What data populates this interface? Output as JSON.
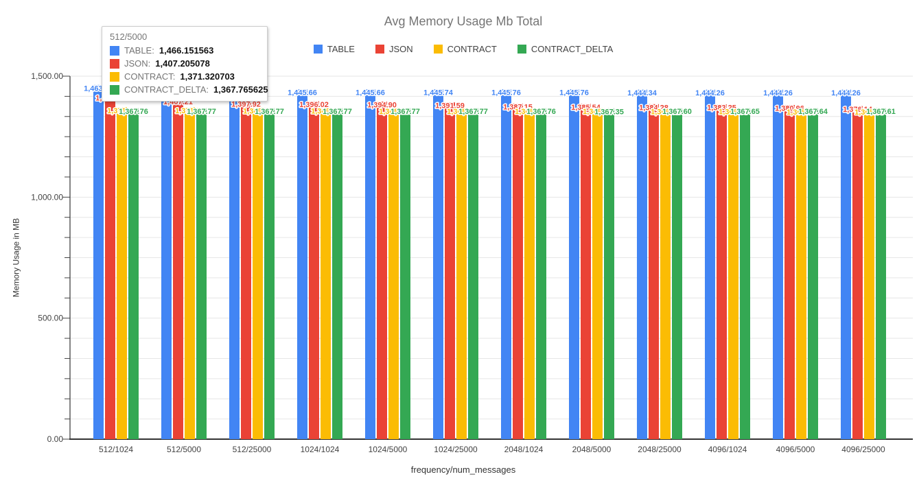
{
  "chart_data": {
    "type": "bar",
    "title": "Avg Memory Usage Mb Total",
    "xlabel": "frequency/num_messages",
    "ylabel": "Memory Usage in MB",
    "ylim": [
      0,
      1500
    ],
    "grid": true,
    "legend_position": "top",
    "y_tick_labels": [
      "0.00",
      "500.00",
      "1,000.00",
      "1,500.00"
    ],
    "categories": [
      "512/1024",
      "512/5000",
      "512/25000",
      "1024/1024",
      "1024/5000",
      "1024/25000",
      "2048/1024",
      "2048/5000",
      "2048/25000",
      "4096/1024",
      "4096/5000",
      "4096/25000"
    ],
    "series": [
      {
        "name": "TABLE",
        "color": "#4285F4",
        "values": [
          1463.66,
          1466.15,
          1446.05,
          1445.66,
          1445.66,
          1445.74,
          1445.76,
          1445.76,
          1444.34,
          1444.26,
          1444.26,
          1444.26
        ]
      },
      {
        "name": "JSON",
        "color": "#EA4335",
        "values": [
          1424.09,
          1407.21,
          1397.92,
          1396.02,
          1394.9,
          1391.59,
          1387.15,
          1385.54,
          1384.28,
          1383.25,
          1380.96,
          1376.14
        ]
      },
      {
        "name": "CONTRACT",
        "color": "#FBBC04",
        "values": [
          1371.4,
          1371.32,
          1369.48,
          1369.05,
          1368.81,
          1368.52,
          1368.23,
          1368.04,
          1366.52,
          1366.08,
          1365.85,
          1365.58
        ]
      },
      {
        "name": "CONTRACT_DELTA",
        "color": "#34A853",
        "values": [
          1367.76,
          1367.77,
          1367.77,
          1367.77,
          1367.77,
          1367.77,
          1367.76,
          1367.35,
          1367.6,
          1367.65,
          1367.64,
          1367.61
        ]
      }
    ]
  },
  "tooltip": {
    "category": "512/5000",
    "rows": [
      {
        "name": "TABLE:",
        "value": "1,466.151563",
        "color": "#4285F4"
      },
      {
        "name": "JSON:",
        "value": "1,407.205078",
        "color": "#EA4335"
      },
      {
        "name": "CONTRACT:",
        "value": "1,371.320703",
        "color": "#FBBC04"
      },
      {
        "name": "CONTRACT_DELTA:",
        "value": "1,367.765625",
        "color": "#34A853"
      }
    ]
  }
}
